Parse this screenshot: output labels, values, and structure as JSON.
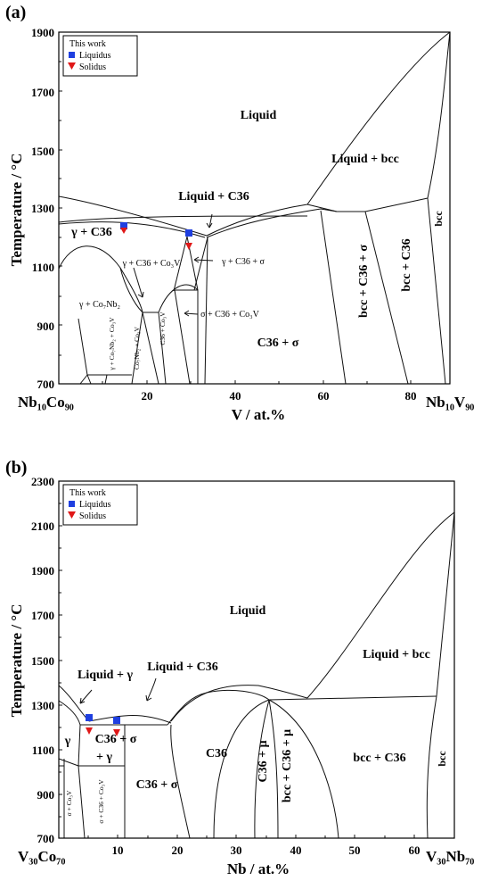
{
  "panel_a": {
    "label": "(a)",
    "y_axis_label": "Temperature / °C",
    "x_axis_label": "V / at.%",
    "left_end": "Nb₁₀Co₉₀",
    "right_end": "Nb₁₀V₉₀",
    "y_ticks": [
      "1900",
      "1700",
      "1500",
      "1300",
      "1100",
      "900",
      "700"
    ],
    "x_ticks": [
      "20",
      "40",
      "60",
      "80"
    ],
    "legend": {
      "title": "This work",
      "liquidus": "Liquidus",
      "solidus": "Solidus"
    },
    "regions": {
      "liquid": "Liquid",
      "liquid_bcc": "Liquid + bcc",
      "liquid_c36": "Liquid + C36",
      "gamma_c36": "γ + C36",
      "gamma_c36_co3v": "γ + C36 + Co₃V",
      "gamma_c36_sigma": "γ + C36 + σ",
      "gamma_co7nb2": "γ + Co₇Nb₂",
      "sigma_c36_co3v": "σ + C36 + Co₃V",
      "c36_co3v": "C36 + Co₃V",
      "c36_sigma": "C36 + σ",
      "bcc_c36_sigma": "bcc + C36 + σ",
      "bcc_c36": "bcc + C36",
      "bcc": "bcc",
      "co7nb2_co3v": "Co₇Nb₂ + Co₃V",
      "gamma_co7nb2_co3v": "γ + Co₇Nb₂ + Co₃V"
    }
  },
  "panel_b": {
    "label": "(b)",
    "y_axis_label": "Temperature / °C",
    "x_axis_label": "Nb / at.%",
    "left_end": "V₃₀Co₇₀",
    "right_end": "V₃₀Nb₇₀",
    "y_ticks": [
      "2300",
      "2100",
      "1900",
      "1700",
      "1500",
      "1300",
      "1100",
      "900",
      "700"
    ],
    "x_ticks": [
      "10",
      "20",
      "30",
      "40",
      "50",
      "60"
    ],
    "legend": {
      "title": "This work",
      "liquidus": "Liquidus",
      "solidus": "Solidus"
    },
    "regions": {
      "liquid": "Liquid",
      "liquid_gamma": "Liquid + γ",
      "liquid_c36": "Liquid + C36",
      "liquid_bcc": "Liquid + bcc",
      "gamma": "γ",
      "c36_sigma_gamma_1": "C36 + σ",
      "c36_sigma_gamma_2": "+ γ",
      "c36_sigma": "C36 + σ",
      "c36": "C36",
      "c36_mu": "C36 + μ",
      "bcc_c36_mu": "bcc + C36 + μ",
      "bcc_c36": "bcc + C36",
      "bcc": "bcc",
      "sigma_co3v": "σ + Co₃V",
      "sigma_c36_co3v": "σ + C36 + Co₃V"
    }
  },
  "colors": {
    "liquidus": "#1f3fe0",
    "solidus": "#e01818",
    "line": "#111111"
  }
}
